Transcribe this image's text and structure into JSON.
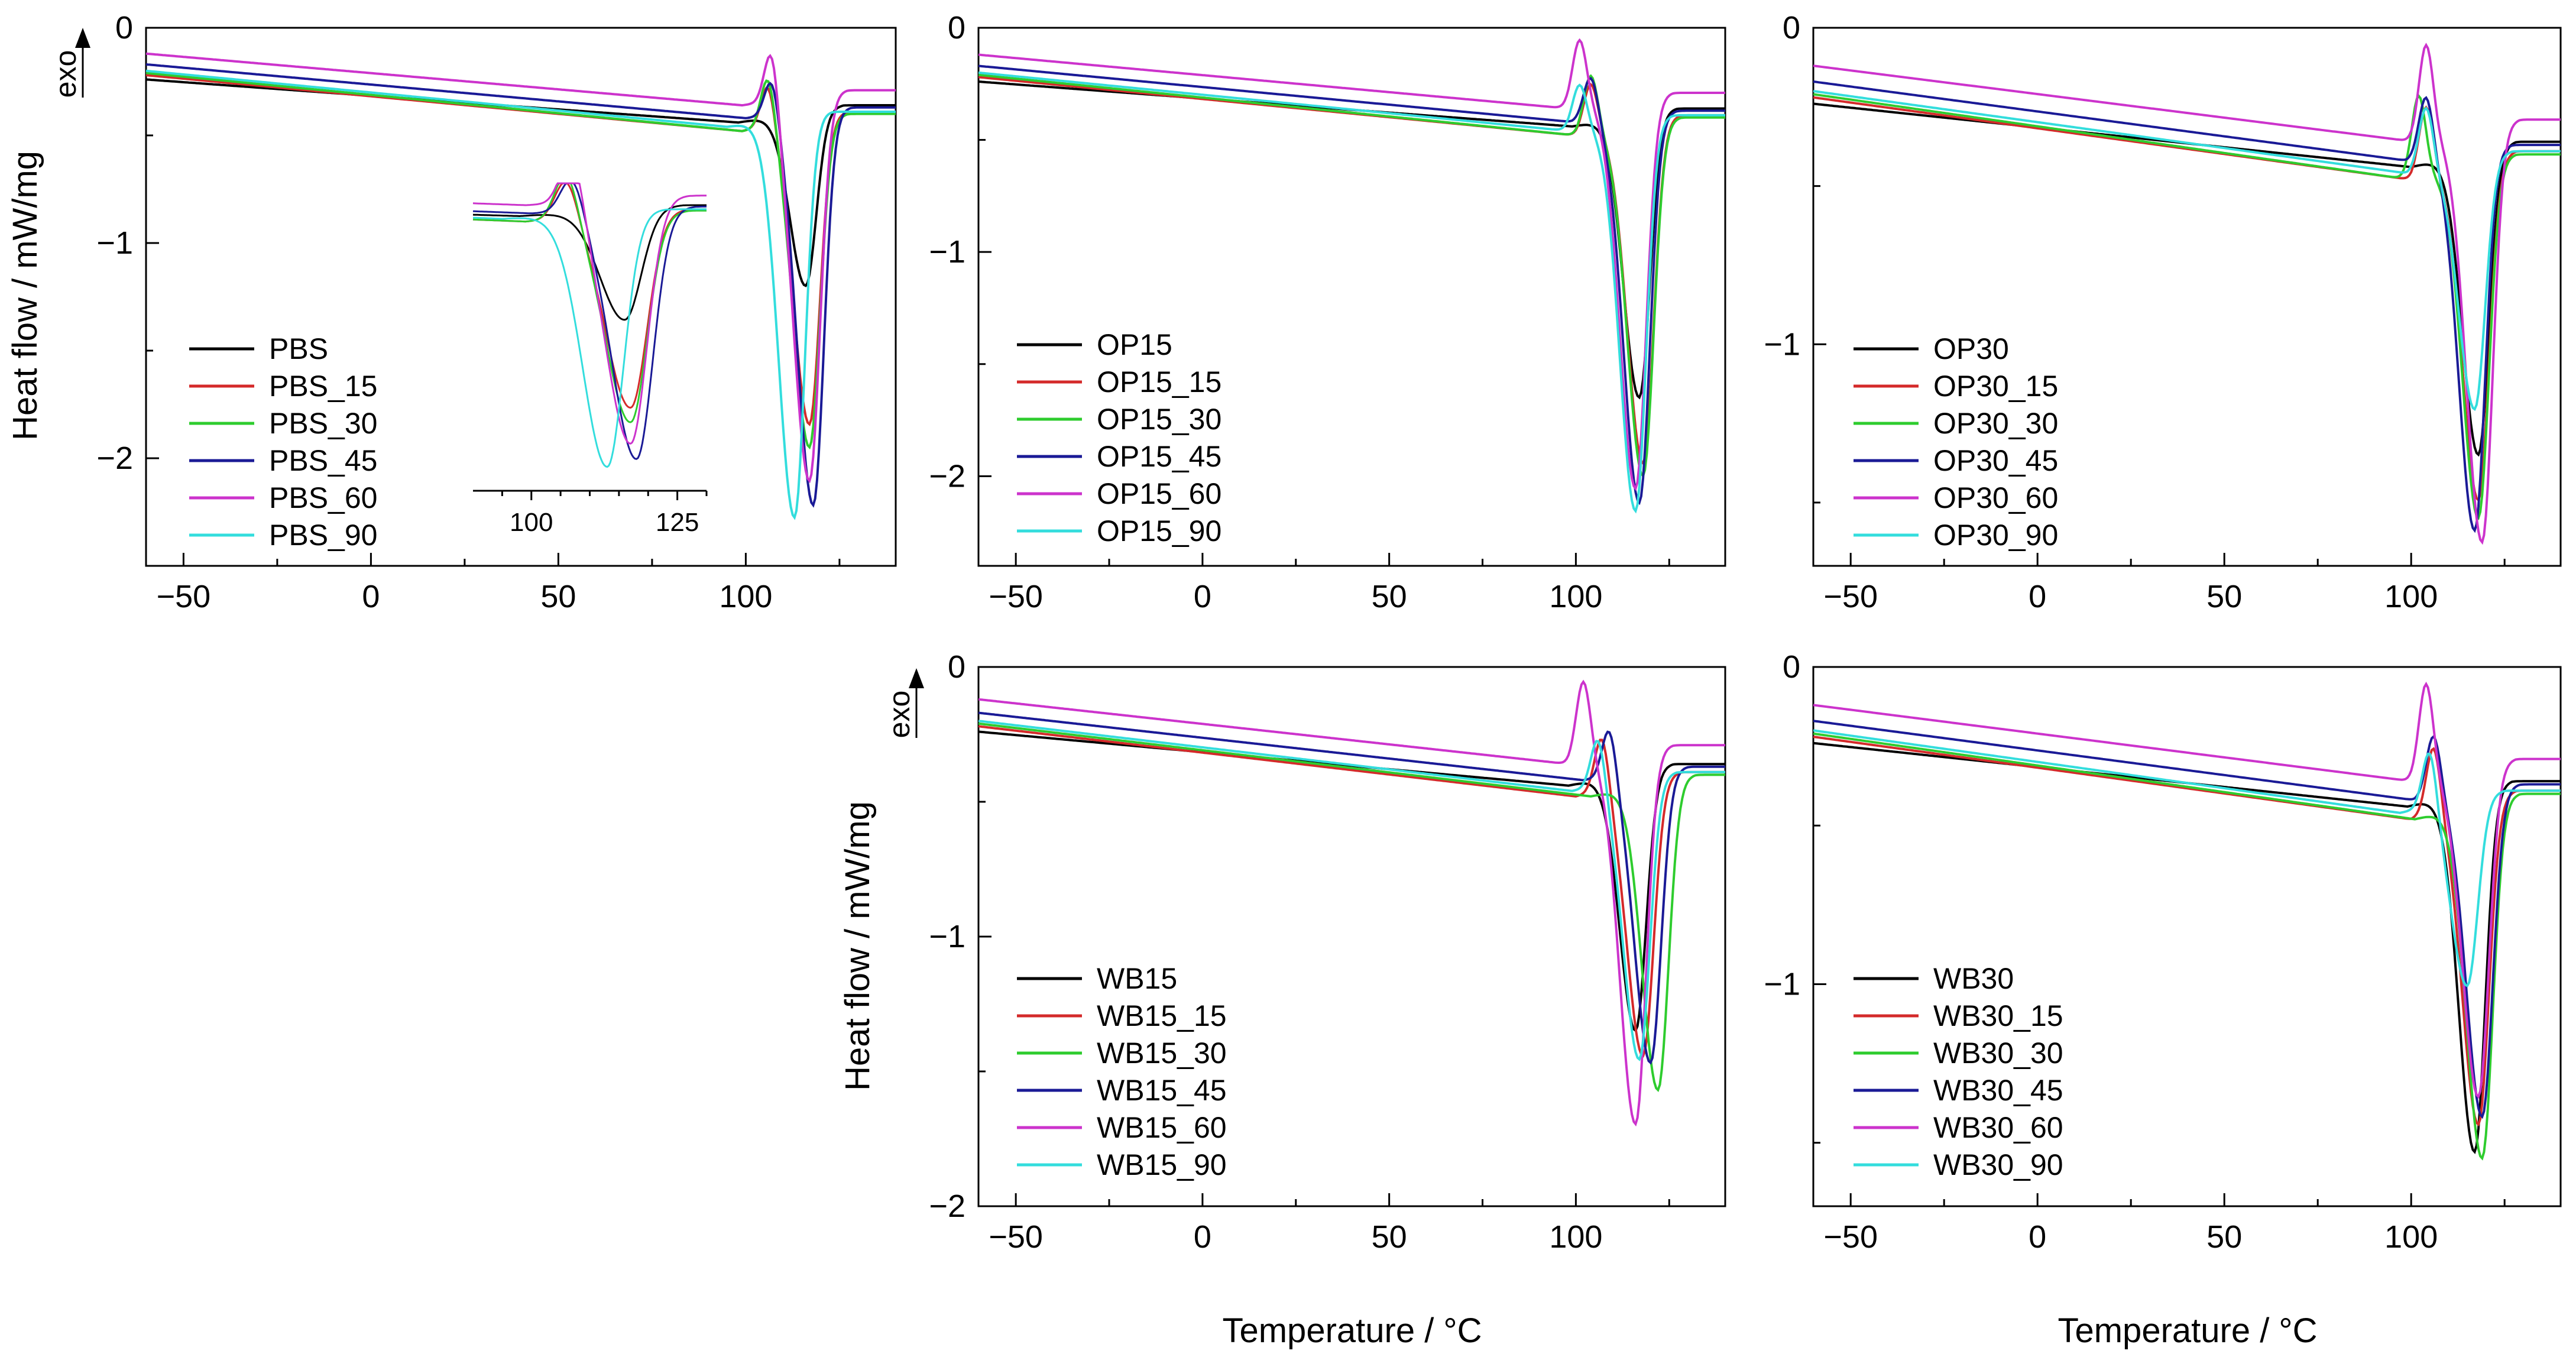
{
  "figure": {
    "x_axis_title": "Temperature / °C",
    "y_axis_title": "Heat flow / mW/mg",
    "exo_label": "exo"
  },
  "series_colors": [
    "#000000",
    "#d42a2a",
    "#2ecc2e",
    "#1a1a96",
    "#cc33cc",
    "#33dddd"
  ],
  "chart_data": [
    {
      "type": "line",
      "panel": "PBS",
      "xlim": [
        -60,
        140
      ],
      "ylim": [
        -2.5,
        0
      ],
      "xticks": [
        -50,
        0,
        50,
        100
      ],
      "yticks": [
        -2,
        -1,
        0
      ],
      "legend_position": "bottom-left",
      "series": [
        {
          "name": "PBS",
          "peak": 116,
          "peak_min": -1.25,
          "exo_peak": null
        },
        {
          "name": "PBS_15",
          "peak": 117,
          "peak_min": -1.9,
          "exo_peak": 106
        },
        {
          "name": "PBS_30",
          "peak": 117,
          "peak_min": -2.0,
          "exo_peak": 106
        },
        {
          "name": "PBS_45",
          "peak": 118,
          "peak_min": -2.25,
          "exo_peak": 107
        },
        {
          "name": "PBS_60",
          "peak": 117,
          "peak_min": -2.15,
          "exo_peak": 107
        },
        {
          "name": "PBS_90",
          "peak": 113,
          "peak_min": -2.32,
          "exo_peak": null
        }
      ],
      "inset": {
        "xlim": [
          90,
          130
        ],
        "xticks": [
          100,
          125
        ]
      }
    },
    {
      "type": "line",
      "panel": "OP15",
      "xlim": [
        -60,
        140
      ],
      "ylim": [
        -2.4,
        0
      ],
      "xticks": [
        -50,
        0,
        50,
        100
      ],
      "yticks": [
        -2,
        -1,
        0
      ],
      "legend_position": "bottom-left",
      "series": [
        {
          "name": "OP15",
          "peak": 117,
          "peak_min": -1.7,
          "exo_peak": null
        },
        {
          "name": "OP15_15",
          "peak": 118,
          "peak_min": -2.0,
          "exo_peak": 104
        },
        {
          "name": "OP15_30",
          "peak": 118,
          "peak_min": -2.05,
          "exo_peak": 104
        },
        {
          "name": "OP15_45",
          "peak": 117,
          "peak_min": -2.15,
          "exo_peak": 104
        },
        {
          "name": "OP15_60",
          "peak": 116,
          "peak_min": -2.1,
          "exo_peak": 101
        },
        {
          "name": "OP15_90",
          "peak": 116,
          "peak_min": -2.2,
          "exo_peak": 101
        }
      ]
    },
    {
      "type": "line",
      "panel": "OP30",
      "xlim": [
        -60,
        140
      ],
      "ylim": [
        -1.7,
        0
      ],
      "xticks": [
        -50,
        0,
        50,
        100
      ],
      "yticks": [
        -1,
        0
      ],
      "legend_position": "bottom-left",
      "series": [
        {
          "name": "OP30",
          "peak": 118,
          "peak_min": -1.4,
          "exo_peak": null
        },
        {
          "name": "OP30_15",
          "peak": 118,
          "peak_min": -1.55,
          "exo_peak": 104
        },
        {
          "name": "OP30_30",
          "peak": 118,
          "peak_min": -1.6,
          "exo_peak": 102
        },
        {
          "name": "OP30_45",
          "peak": 117,
          "peak_min": -1.62,
          "exo_peak": 104
        },
        {
          "name": "OP30_60",
          "peak": 119,
          "peak_min": -1.67,
          "exo_peak": 104
        },
        {
          "name": "OP30_90",
          "peak": 117,
          "peak_min": -1.25,
          "exo_peak": 104
        }
      ]
    },
    {
      "type": "line",
      "panel": "WB15",
      "xlim": [
        -60,
        140
      ],
      "ylim": [
        -2,
        0
      ],
      "xticks": [
        -50,
        0,
        50,
        100
      ],
      "yticks": [
        -2,
        -1,
        0
      ],
      "legend_position": "bottom-left",
      "series": [
        {
          "name": "WB15",
          "peak": 116,
          "peak_min": -1.4,
          "exo_peak": null
        },
        {
          "name": "WB15_15",
          "peak": 118,
          "peak_min": -1.5,
          "exo_peak": 107
        },
        {
          "name": "WB15_30",
          "peak": 122,
          "peak_min": -1.62,
          "exo_peak": null
        },
        {
          "name": "WB15_45",
          "peak": 120,
          "peak_min": -1.5,
          "exo_peak": 109
        },
        {
          "name": "WB15_60",
          "peak": 116,
          "peak_min": -1.74,
          "exo_peak": 102
        },
        {
          "name": "WB15_90",
          "peak": 117,
          "peak_min": -1.5,
          "exo_peak": 106
        }
      ]
    },
    {
      "type": "line",
      "panel": "WB30",
      "xlim": [
        -60,
        140
      ],
      "ylim": [
        -1.7,
        0
      ],
      "xticks": [
        -50,
        0,
        50,
        100
      ],
      "yticks": [
        -1,
        0
      ],
      "legend_position": "bottom-left",
      "series": [
        {
          "name": "WB30",
          "peak": 117,
          "peak_min": -1.58,
          "exo_peak": null
        },
        {
          "name": "WB30_15",
          "peak": 118,
          "peak_min": -1.5,
          "exo_peak": 106
        },
        {
          "name": "WB30_30",
          "peak": 119,
          "peak_min": -1.6,
          "exo_peak": null
        },
        {
          "name": "WB30_45",
          "peak": 119,
          "peak_min": -1.45,
          "exo_peak": 106
        },
        {
          "name": "WB30_60",
          "peak": 118,
          "peak_min": -1.4,
          "exo_peak": 104
        },
        {
          "name": "WB30_90",
          "peak": 115,
          "peak_min": -1.05,
          "exo_peak": 105
        }
      ]
    }
  ]
}
